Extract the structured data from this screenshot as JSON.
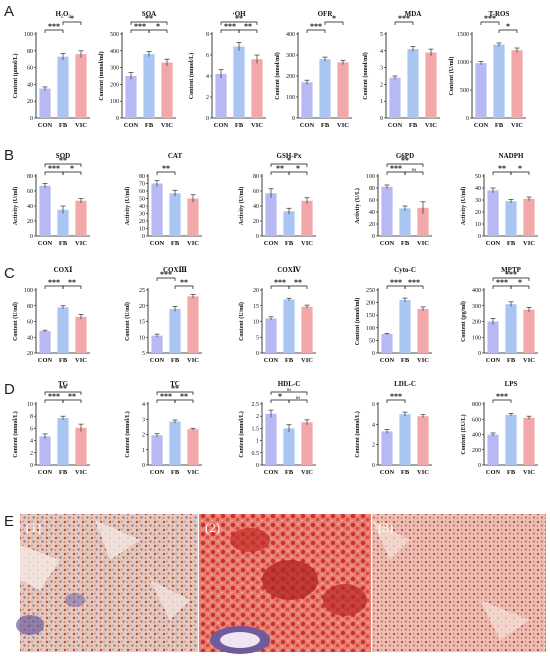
{
  "panel_letters": [
    "A",
    "B",
    "C",
    "D",
    "E"
  ],
  "groups": [
    "CON",
    "FB",
    "VIC"
  ],
  "colors": {
    "CON": "#b7b9f3",
    "FB": "#a9c6f3",
    "VIC": "#f2a8a8",
    "error": "#333333"
  },
  "image_labels": [
    "(1)",
    "(2)",
    "(3)"
  ],
  "chart_data": [
    {
      "id": "A1",
      "type": "bar",
      "title": "H₂O₂",
      "ylabel": "Content (μmol/L)",
      "categories": [
        "CON",
        "FB",
        "VIC"
      ],
      "values": [
        35,
        73,
        76
      ],
      "errors": [
        2,
        4,
        4
      ],
      "ylim": [
        0,
        100
      ],
      "yticks": [
        0,
        20,
        40,
        60,
        80,
        100
      ],
      "sig": [
        {
          "a": 0,
          "b": 1,
          "label": "***",
          "level": 0
        },
        {
          "a": 1,
          "b": 2,
          "label": "*",
          "level": 1
        }
      ]
    },
    {
      "id": "A2",
      "type": "bar",
      "title": "SOA",
      "ylabel": "Content (mmol/ml)",
      "categories": [
        "CON",
        "FB",
        "VIC"
      ],
      "values": [
        250,
        380,
        330
      ],
      "errors": [
        20,
        15,
        20
      ],
      "ylim": [
        0,
        500
      ],
      "yticks": [
        0,
        100,
        200,
        300,
        400,
        500
      ],
      "sig": [
        {
          "a": 0,
          "b": 1,
          "label": "***",
          "level": 0
        },
        {
          "a": 0,
          "b": 2,
          "label": "**",
          "level": 1
        },
        {
          "a": 1,
          "b": 2,
          "label": "*",
          "level": 0
        }
      ]
    },
    {
      "id": "A3",
      "type": "bar",
      "title": "·OH",
      "ylabel": "Content (mmol/L)",
      "categories": [
        "CON",
        "FB",
        "VIC"
      ],
      "values": [
        4.2,
        6.8,
        5.6
      ],
      "errors": [
        0.4,
        0.4,
        0.4
      ],
      "ylim": [
        0,
        8
      ],
      "yticks": [
        0,
        2,
        4,
        6,
        8
      ],
      "sig": [
        {
          "a": 0,
          "b": 1,
          "label": "***",
          "level": 0
        },
        {
          "a": 0,
          "b": 2,
          "label": "**",
          "level": 1
        },
        {
          "a": 1,
          "b": 2,
          "label": "**",
          "level": 0
        }
      ]
    },
    {
      "id": "A4",
      "type": "bar",
      "title": "OFR",
      "ylabel": "Content (nmol/ml)",
      "categories": [
        "CON",
        "FB",
        "VIC"
      ],
      "values": [
        170,
        280,
        265
      ],
      "errors": [
        10,
        10,
        10
      ],
      "ylim": [
        0,
        400
      ],
      "yticks": [
        0,
        100,
        200,
        300,
        400
      ],
      "sig": [
        {
          "a": 0,
          "b": 1,
          "label": "***",
          "level": 0
        },
        {
          "a": 1,
          "b": 2,
          "label": "*",
          "level": 1
        }
      ]
    },
    {
      "id": "A5",
      "type": "bar",
      "title": "MDA",
      "ylabel": "Content (nmol/ml)",
      "categories": [
        "CON",
        "FB",
        "VIC"
      ],
      "values": [
        2.4,
        4.1,
        3.9
      ],
      "errors": [
        0.1,
        0.15,
        0.2
      ],
      "ylim": [
        0,
        5
      ],
      "yticks": [
        0,
        1,
        2,
        3,
        4,
        5
      ],
      "sig": [
        {
          "a": 0,
          "b": 1,
          "label": "***",
          "level": 1
        }
      ]
    },
    {
      "id": "A6",
      "type": "bar",
      "title": "T-ROS",
      "ylabel": "Content (U/ml)",
      "categories": [
        "CON",
        "FB",
        "VIC"
      ],
      "values": [
        980,
        1310,
        1210
      ],
      "errors": [
        30,
        30,
        40
      ],
      "ylim": [
        0,
        1500
      ],
      "yticks": [
        0,
        500,
        1000,
        1500
      ],
      "sig": [
        {
          "a": 0,
          "b": 1,
          "label": "***",
          "level": 1
        },
        {
          "a": 1,
          "b": 2,
          "label": "*",
          "level": 0
        }
      ]
    },
    {
      "id": "B1",
      "type": "bar",
      "title": "SOD",
      "ylabel": "Activity (U/ml)",
      "categories": [
        "CON",
        "FB",
        "VIC"
      ],
      "values": [
        67,
        35,
        47
      ],
      "errors": [
        3,
        5,
        3
      ],
      "ylim": [
        0,
        80
      ],
      "yticks": [
        0,
        20,
        40,
        60,
        80
      ],
      "sig": [
        {
          "a": 0,
          "b": 1,
          "label": "***",
          "level": 0
        },
        {
          "a": 0,
          "b": 2,
          "label": "**",
          "level": 1
        },
        {
          "a": 1,
          "b": 2,
          "label": "*",
          "level": 0
        }
      ]
    },
    {
      "id": "B2",
      "type": "bar",
      "title": "CAT",
      "ylabel": "Activity (U/ml)",
      "categories": [
        "CON",
        "FB",
        "VIC"
      ],
      "values": [
        70,
        57,
        50
      ],
      "errors": [
        4,
        4,
        5
      ],
      "ylim": [
        0,
        80
      ],
      "yticks": [
        0,
        10,
        20,
        30,
        40,
        50,
        60,
        70,
        80
      ],
      "sig": [
        {
          "a": 0,
          "b": 1,
          "label": "**",
          "level": 0
        }
      ]
    },
    {
      "id": "B3",
      "type": "bar",
      "title": "GSH-Px",
      "ylabel": "Activity (U/ml)",
      "categories": [
        "CON",
        "FB",
        "VIC"
      ],
      "values": [
        57,
        33,
        47
      ],
      "errors": [
        6,
        4,
        4
      ],
      "ylim": [
        0,
        80
      ],
      "yticks": [
        0,
        20,
        40,
        60,
        80
      ],
      "sig": [
        {
          "a": 0,
          "b": 1,
          "label": "**",
          "level": 0
        },
        {
          "a": 0,
          "b": 2,
          "label": "*",
          "level": 1
        },
        {
          "a": 1,
          "b": 2,
          "label": "*",
          "level": 0
        }
      ]
    },
    {
      "id": "B4",
      "type": "bar",
      "title": "G6PD",
      "ylabel": "Activity (U/L)",
      "categories": [
        "CON",
        "FB",
        "VIC"
      ],
      "values": [
        82,
        46,
        47
      ],
      "errors": [
        3,
        4,
        10
      ],
      "ylim": [
        0,
        100
      ],
      "yticks": [
        0,
        20,
        40,
        60,
        80,
        100
      ],
      "sig": [
        {
          "a": 0,
          "b": 1,
          "label": "***",
          "level": 0
        },
        {
          "a": 0,
          "b": 2,
          "label": "**",
          "level": 1
        },
        {
          "a": 1,
          "b": 2,
          "label": "ns",
          "level": 0
        }
      ]
    },
    {
      "id": "B5",
      "type": "bar",
      "title": "NADPH",
      "ylabel": "Activity (U/ml)",
      "categories": [
        "CON",
        "FB",
        "VIC"
      ],
      "values": [
        38,
        29,
        31
      ],
      "errors": [
        2,
        1.5,
        1.5
      ],
      "ylim": [
        0,
        50
      ],
      "yticks": [
        0,
        10,
        20,
        30,
        40,
        50
      ],
      "sig": [
        {
          "a": 0,
          "b": 1,
          "label": "**",
          "level": 0
        },
        {
          "a": 1,
          "b": 2,
          "label": "*",
          "level": 0
        }
      ]
    },
    {
      "id": "C1",
      "type": "bar",
      "title": "COXⅠ",
      "ylabel": "Content (U/ml)",
      "categories": [
        "CON",
        "FB",
        "VIC"
      ],
      "values": [
        48,
        78,
        66
      ],
      "errors": [
        1,
        2,
        3
      ],
      "ylim": [
        20,
        100
      ],
      "yticks": [
        20,
        40,
        60,
        80,
        100
      ],
      "sig": [
        {
          "a": 0,
          "b": 1,
          "label": "***",
          "level": 0
        },
        {
          "a": 1,
          "b": 2,
          "label": "**",
          "level": 0
        }
      ]
    },
    {
      "id": "C2",
      "type": "bar",
      "title": "COXⅢ",
      "ylabel": "Content (U/ml)",
      "categories": [
        "CON",
        "FB",
        "VIC"
      ],
      "values": [
        10.5,
        19,
        23
      ],
      "errors": [
        0.5,
        0.8,
        0.6
      ],
      "ylim": [
        5,
        25
      ],
      "yticks": [
        5,
        10,
        15,
        20,
        25
      ],
      "sig": [
        {
          "a": 0,
          "b": 1,
          "label": "***",
          "level": 1
        },
        {
          "a": 1,
          "b": 2,
          "label": "**",
          "level": 0
        }
      ]
    },
    {
      "id": "C3",
      "type": "bar",
      "title": "COXⅣ",
      "ylabel": "Content (U/ml)",
      "categories": [
        "CON",
        "FB",
        "VIC"
      ],
      "values": [
        11,
        17,
        14.7
      ],
      "errors": [
        0.5,
        0.4,
        0.5
      ],
      "ylim": [
        0,
        20
      ],
      "yticks": [
        0,
        5,
        10,
        15,
        20
      ],
      "sig": [
        {
          "a": 0,
          "b": 1,
          "label": "***",
          "level": 0
        },
        {
          "a": 1,
          "b": 2,
          "label": "**",
          "level": 0
        }
      ]
    },
    {
      "id": "C4",
      "type": "bar",
      "title": "Cyto-C",
      "ylabel": "Content (nmol/ml)",
      "categories": [
        "CON",
        "FB",
        "VIC"
      ],
      "values": [
        75,
        210,
        175
      ],
      "errors": [
        3,
        8,
        8
      ],
      "ylim": [
        0,
        250
      ],
      "yticks": [
        0,
        50,
        100,
        150,
        200,
        250
      ],
      "sig": [
        {
          "a": 0,
          "b": 1,
          "label": "***",
          "level": 0
        },
        {
          "a": 1,
          "b": 2,
          "label": "***",
          "level": 0
        }
      ]
    },
    {
      "id": "C5",
      "type": "bar",
      "title": "MPTP",
      "ylabel": "Content (pg/ml)",
      "categories": [
        "CON",
        "FB",
        "VIC"
      ],
      "values": [
        200,
        310,
        275
      ],
      "errors": [
        20,
        15,
        15
      ],
      "ylim": [
        0,
        400
      ],
      "yticks": [
        0,
        100,
        200,
        300,
        400
      ],
      "sig": [
        {
          "a": 0,
          "b": 1,
          "label": "***",
          "level": 0
        },
        {
          "a": 0,
          "b": 2,
          "label": "***",
          "level": 1
        },
        {
          "a": 1,
          "b": 2,
          "label": "*",
          "level": 0
        }
      ]
    },
    {
      "id": "D1",
      "type": "bar",
      "title": "TG",
      "ylabel": "Content (mmol/L)",
      "categories": [
        "CON",
        "FB",
        "VIC"
      ],
      "values": [
        4.7,
        7.7,
        6.1
      ],
      "errors": [
        0.4,
        0.3,
        0.6
      ],
      "ylim": [
        0,
        10
      ],
      "yticks": [
        0,
        2,
        4,
        6,
        8,
        10
      ],
      "sig": [
        {
          "a": 0,
          "b": 1,
          "label": "***",
          "level": 0
        },
        {
          "a": 0,
          "b": 2,
          "label": "**",
          "level": 1
        },
        {
          "a": 1,
          "b": 2,
          "label": "**",
          "level": 0
        }
      ]
    },
    {
      "id": "D2",
      "type": "bar",
      "title": "TC",
      "ylabel": "Content (mmol/L)",
      "categories": [
        "CON",
        "FB",
        "VIC"
      ],
      "values": [
        1.95,
        2.85,
        2.35
      ],
      "errors": [
        0.1,
        0.1,
        0.06
      ],
      "ylim": [
        0,
        4
      ],
      "yticks": [
        0,
        1,
        2,
        3,
        4
      ],
      "sig": [
        {
          "a": 0,
          "b": 1,
          "label": "***",
          "level": 0
        },
        {
          "a": 0,
          "b": 2,
          "label": "**",
          "level": 1
        },
        {
          "a": 1,
          "b": 2,
          "label": "**",
          "level": 0
        }
      ]
    },
    {
      "id": "D3",
      "type": "bar",
      "title": "HDL-C",
      "ylabel": "Content (mmol/L)",
      "categories": [
        "CON",
        "FB",
        "VIC"
      ],
      "values": [
        2.1,
        1.5,
        1.75
      ],
      "errors": [
        0.15,
        0.15,
        0.1
      ],
      "ylim": [
        0,
        2.5
      ],
      "yticks": [
        0,
        0.5,
        1,
        1.5,
        2,
        2.5
      ],
      "sig": [
        {
          "a": 0,
          "b": 1,
          "label": "*",
          "level": 0
        },
        {
          "a": 0,
          "b": 2,
          "label": "ns",
          "level": 1
        },
        {
          "a": 1,
          "b": 2,
          "label": "ns",
          "level": 0
        }
      ]
    },
    {
      "id": "D4",
      "type": "bar",
      "title": "LDL-C",
      "ylabel": "Content (mmol/L)",
      "categories": [
        "CON",
        "FB",
        "VIC"
      ],
      "values": [
        3.3,
        5.0,
        4.8
      ],
      "errors": [
        0.2,
        0.2,
        0.15
      ],
      "ylim": [
        0,
        6
      ],
      "yticks": [
        0,
        2,
        4,
        6
      ],
      "sig": [
        {
          "a": 0,
          "b": 1,
          "label": "***",
          "level": 0
        }
      ]
    },
    {
      "id": "D5",
      "type": "bar",
      "title": "LPS",
      "ylabel": "Content (EU/L)",
      "categories": [
        "CON",
        "FB",
        "VIC"
      ],
      "values": [
        400,
        660,
        620
      ],
      "errors": [
        20,
        15,
        20
      ],
      "ylim": [
        0,
        800
      ],
      "yticks": [
        0,
        200,
        400,
        600,
        800
      ],
      "sig": [
        {
          "a": 0,
          "b": 1,
          "label": "***",
          "level": 0
        }
      ]
    }
  ]
}
